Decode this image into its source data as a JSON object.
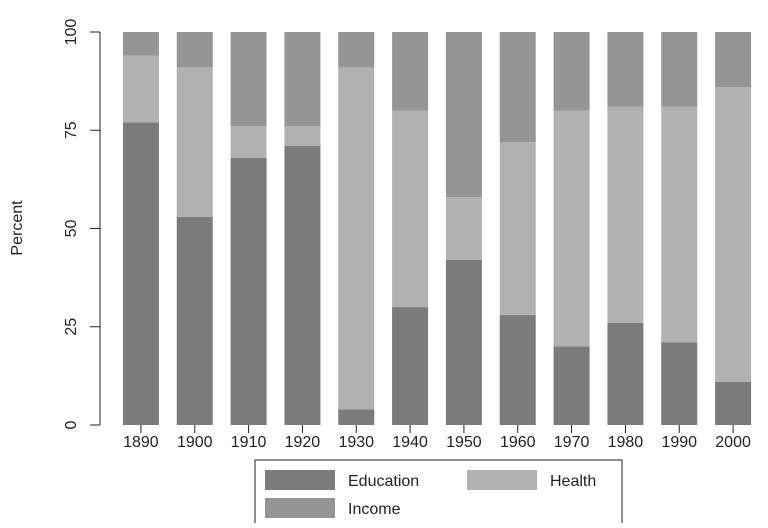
{
  "chart_data": {
    "type": "stacked_bar",
    "categories": [
      "1890",
      "1900",
      "1910",
      "1920",
      "1930",
      "1940",
      "1950",
      "1960",
      "1970",
      "1980",
      "1990",
      "2000"
    ],
    "series": [
      {
        "name": "Education",
        "color": "#7b7b7b",
        "values": [
          77,
          53,
          68,
          71,
          4,
          30,
          42,
          28,
          20,
          26,
          21,
          11
        ]
      },
      {
        "name": "Health",
        "color": "#b1b1b1",
        "values": [
          17,
          38,
          8,
          5,
          87,
          50,
          16,
          44,
          60,
          55,
          60,
          75
        ]
      },
      {
        "name": "Income",
        "color": "#959595",
        "values": [
          6,
          9,
          24,
          24,
          9,
          20,
          42,
          28,
          20,
          19,
          19,
          14
        ]
      }
    ],
    "ylabel": "Percent",
    "ylim": [
      0,
      100
    ],
    "yticks": [
      0,
      25,
      50,
      75,
      100
    ],
    "legend": "bottom"
  }
}
